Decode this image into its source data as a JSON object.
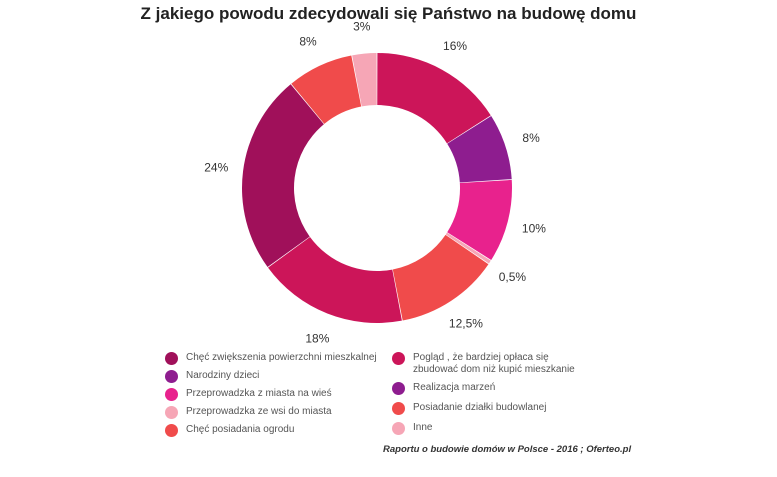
{
  "chart_data": {
    "type": "pie",
    "donut": true,
    "title": "Z jakiego powodu zdecydowali się Państwo na budowę domu",
    "slices": [
      {
        "label": "Pogląd , że bardziej opłaca się zbudować dom niż kupić mieszkanie",
        "display": "16%",
        "value": 16,
        "color": "#cc1559"
      },
      {
        "label": "Realizacja marzeń",
        "display": "8%",
        "value": 8,
        "color": "#8e1d8f"
      },
      {
        "label": "Przeprowadzka z miasta na wieś",
        "display": "10%",
        "value": 10,
        "color": "#e8228d"
      },
      {
        "label": "Inne",
        "display": "0,5%",
        "value": 0.5,
        "color": "#f6a6b6"
      },
      {
        "label": "Posiadanie działki budowlanej",
        "display": "12,5%",
        "value": 12.5,
        "color": "#f04b4b"
      },
      {
        "label": "Narodziny dzieci",
        "display": "18%",
        "value": 18,
        "color": "#cc1559"
      },
      {
        "label": "Chęć zwiększenia powierzchni mieszkalnej",
        "display": "24%",
        "value": 24,
        "color": "#a0105a"
      },
      {
        "label": "Chęć posiadania ogrodu",
        "display": "8%",
        "value": 8,
        "color": "#f04b4b"
      },
      {
        "label": "Przeprowadzka ze wsi do miasta",
        "display": "3%",
        "value": 3,
        "color": "#f6a6b6"
      }
    ],
    "legend": {
      "left": [
        {
          "label": "Chęć zwiększenia powierzchni mieszkalnej",
          "color": "#a0105a"
        },
        {
          "label": "Narodziny dzieci",
          "color": "#8e1d8f"
        },
        {
          "label": "Przeprowadzka z miasta na wieś",
          "color": "#e8228d"
        },
        {
          "label": "Przeprowadzka ze wsi do miasta",
          "color": "#f6a6b6"
        },
        {
          "label": "Chęć posiadania ogrodu",
          "color": "#f04b4b"
        }
      ],
      "right": [
        {
          "label": "Pogląd , że bardziej opłaca się zbudować dom niż kupić mieszkanie",
          "color": "#cc1559"
        },
        {
          "label": "Realizacja marzeń",
          "color": "#8e1d8f"
        },
        {
          "label": "Posiadanie działki budowlanej",
          "color": "#f04b4b"
        },
        {
          "label": "Inne",
          "color": "#f6a6b6"
        }
      ]
    },
    "source": "Raportu o budowie domów w Polsce - 2016 ; Oferteo.pl"
  }
}
